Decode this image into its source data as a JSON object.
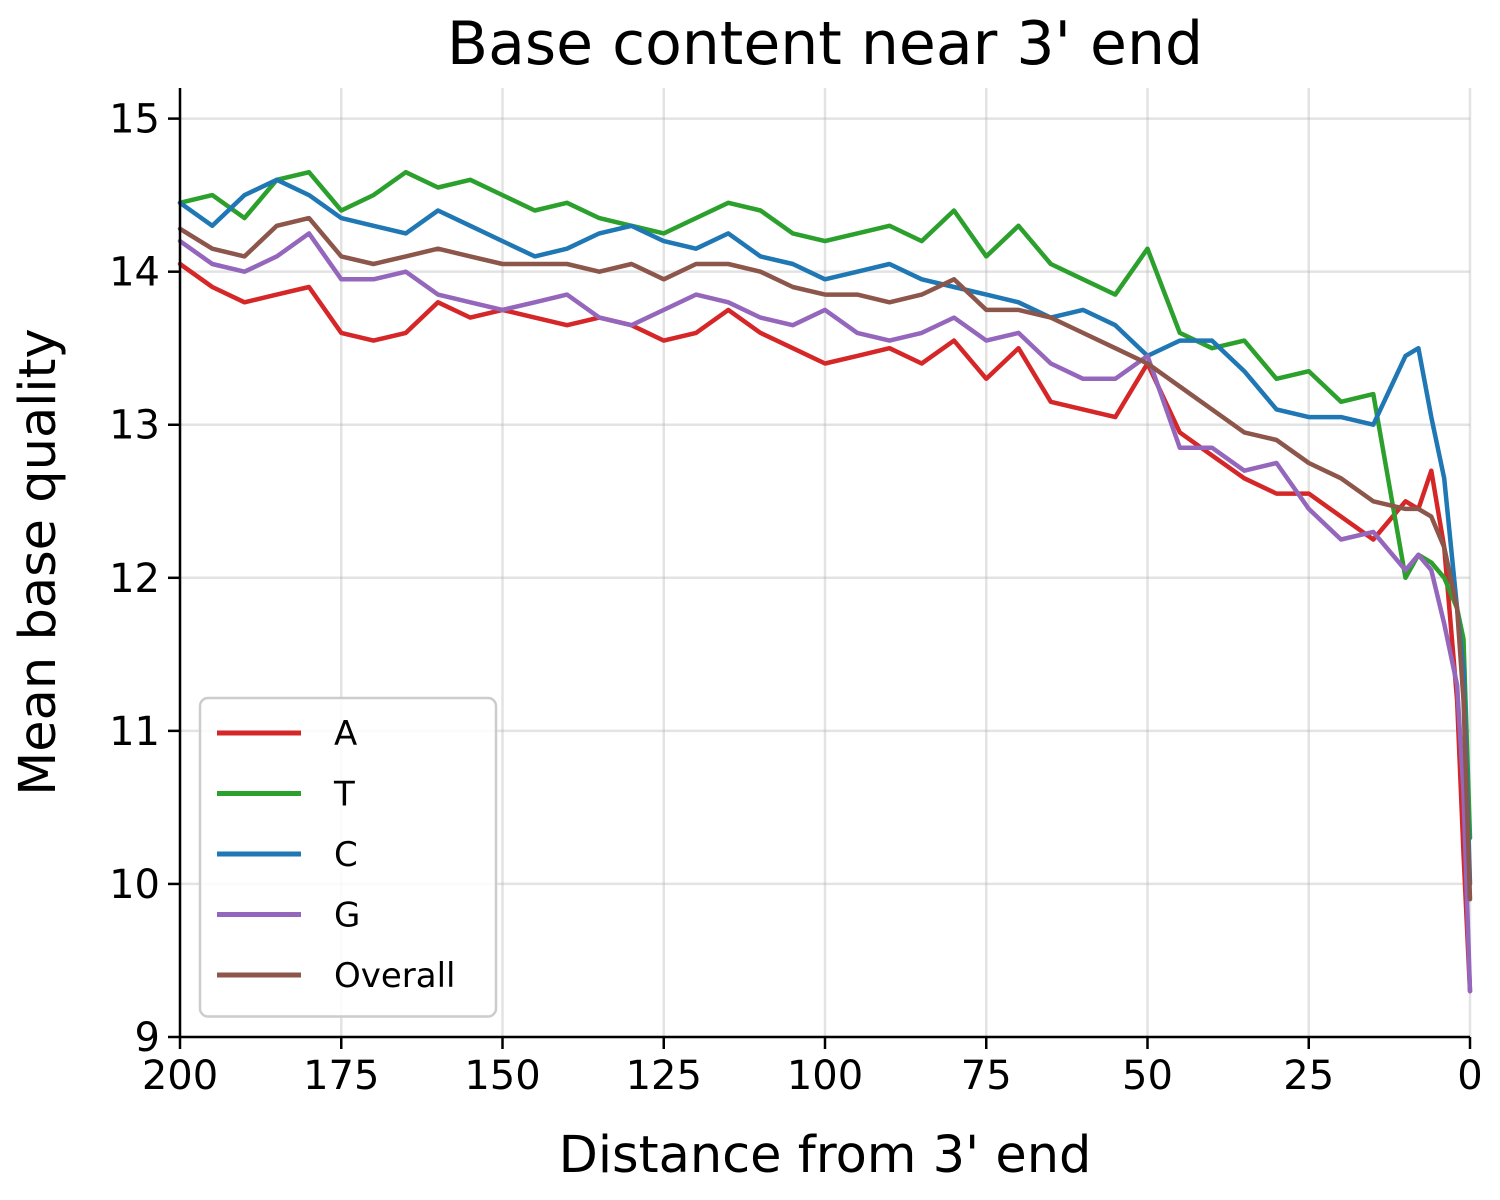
{
  "chart_data": {
    "type": "line",
    "title": "Base content near 3' end",
    "xlabel": "Distance from 3' end",
    "ylabel": "Mean base quality",
    "xlim": [
      200,
      0
    ],
    "ylim": [
      9,
      15.2
    ],
    "x_inverted": true,
    "xticks": [
      200,
      175,
      150,
      125,
      100,
      75,
      50,
      25,
      0
    ],
    "xtick_labels": [
      "200",
      "175",
      "150",
      "125",
      "100",
      "75",
      "50",
      "25",
      "0"
    ],
    "yticks": [
      9,
      10,
      11,
      12,
      13,
      14,
      15
    ],
    "ytick_labels": [
      "9",
      "10",
      "11",
      "12",
      "13",
      "14",
      "15"
    ],
    "grid": true,
    "legend_position": "lower-left",
    "x": [
      200,
      195,
      190,
      185,
      180,
      175,
      170,
      165,
      160,
      155,
      150,
      145,
      140,
      135,
      130,
      125,
      120,
      115,
      110,
      105,
      100,
      95,
      90,
      85,
      80,
      75,
      70,
      65,
      60,
      55,
      50,
      45,
      40,
      35,
      30,
      25,
      20,
      15,
      10,
      8,
      6,
      4,
      2,
      1,
      0
    ],
    "series": [
      {
        "name": "A",
        "color": "#d62728",
        "values": [
          14.05,
          13.9,
          13.8,
          13.85,
          13.9,
          13.6,
          13.55,
          13.6,
          13.8,
          13.7,
          13.75,
          13.7,
          13.65,
          13.7,
          13.65,
          13.55,
          13.6,
          13.75,
          13.6,
          13.5,
          13.4,
          13.45,
          13.5,
          13.4,
          13.55,
          13.3,
          13.5,
          13.15,
          13.1,
          13.05,
          13.4,
          12.95,
          12.8,
          12.65,
          12.55,
          12.55,
          12.4,
          12.25,
          12.5,
          12.45,
          12.7,
          12.2,
          11.2,
          10.2,
          9.3
        ]
      },
      {
        "name": "T",
        "color": "#2ca02c",
        "values": [
          14.45,
          14.5,
          14.35,
          14.6,
          14.65,
          14.4,
          14.5,
          14.65,
          14.55,
          14.6,
          14.5,
          14.4,
          14.45,
          14.35,
          14.3,
          14.25,
          14.35,
          14.45,
          14.4,
          14.25,
          14.2,
          14.25,
          14.3,
          14.2,
          14.4,
          14.1,
          14.3,
          14.05,
          13.95,
          13.85,
          14.15,
          13.6,
          13.5,
          13.55,
          13.3,
          13.35,
          13.15,
          13.2,
          12.0,
          12.15,
          12.1,
          12.0,
          11.8,
          11.6,
          10.3
        ]
      },
      {
        "name": "C",
        "color": "#1f77b4",
        "values": [
          14.45,
          14.3,
          14.5,
          14.6,
          14.5,
          14.35,
          14.3,
          14.25,
          14.4,
          14.3,
          14.2,
          14.1,
          14.15,
          14.25,
          14.3,
          14.2,
          14.15,
          14.25,
          14.1,
          14.05,
          13.95,
          14.0,
          14.05,
          13.95,
          13.9,
          13.85,
          13.8,
          13.7,
          13.75,
          13.65,
          13.45,
          13.55,
          13.55,
          13.35,
          13.1,
          13.05,
          13.05,
          13.0,
          13.45,
          13.5,
          13.05,
          12.65,
          11.8,
          11.4,
          10.0
        ]
      },
      {
        "name": "G",
        "color": "#9467bd",
        "values": [
          14.2,
          14.05,
          14.0,
          14.1,
          14.25,
          13.95,
          13.95,
          14.0,
          13.85,
          13.8,
          13.75,
          13.8,
          13.85,
          13.7,
          13.65,
          13.75,
          13.85,
          13.8,
          13.7,
          13.65,
          13.75,
          13.6,
          13.55,
          13.6,
          13.7,
          13.55,
          13.6,
          13.4,
          13.3,
          13.3,
          13.45,
          12.85,
          12.85,
          12.7,
          12.75,
          12.45,
          12.25,
          12.3,
          12.05,
          12.15,
          12.05,
          11.7,
          11.3,
          10.6,
          9.3
        ]
      },
      {
        "name": "Overall",
        "color": "#8c564b",
        "values": [
          14.28,
          14.15,
          14.1,
          14.3,
          14.35,
          14.1,
          14.05,
          14.1,
          14.15,
          14.1,
          14.05,
          14.05,
          14.05,
          14.0,
          14.05,
          13.95,
          14.05,
          14.05,
          14.0,
          13.9,
          13.85,
          13.85,
          13.8,
          13.85,
          13.95,
          13.75,
          13.75,
          13.7,
          13.6,
          13.5,
          13.4,
          13.25,
          13.1,
          12.95,
          12.9,
          12.75,
          12.65,
          12.5,
          12.45,
          12.45,
          12.4,
          12.2,
          11.8,
          11.2,
          9.9
        ]
      }
    ]
  }
}
